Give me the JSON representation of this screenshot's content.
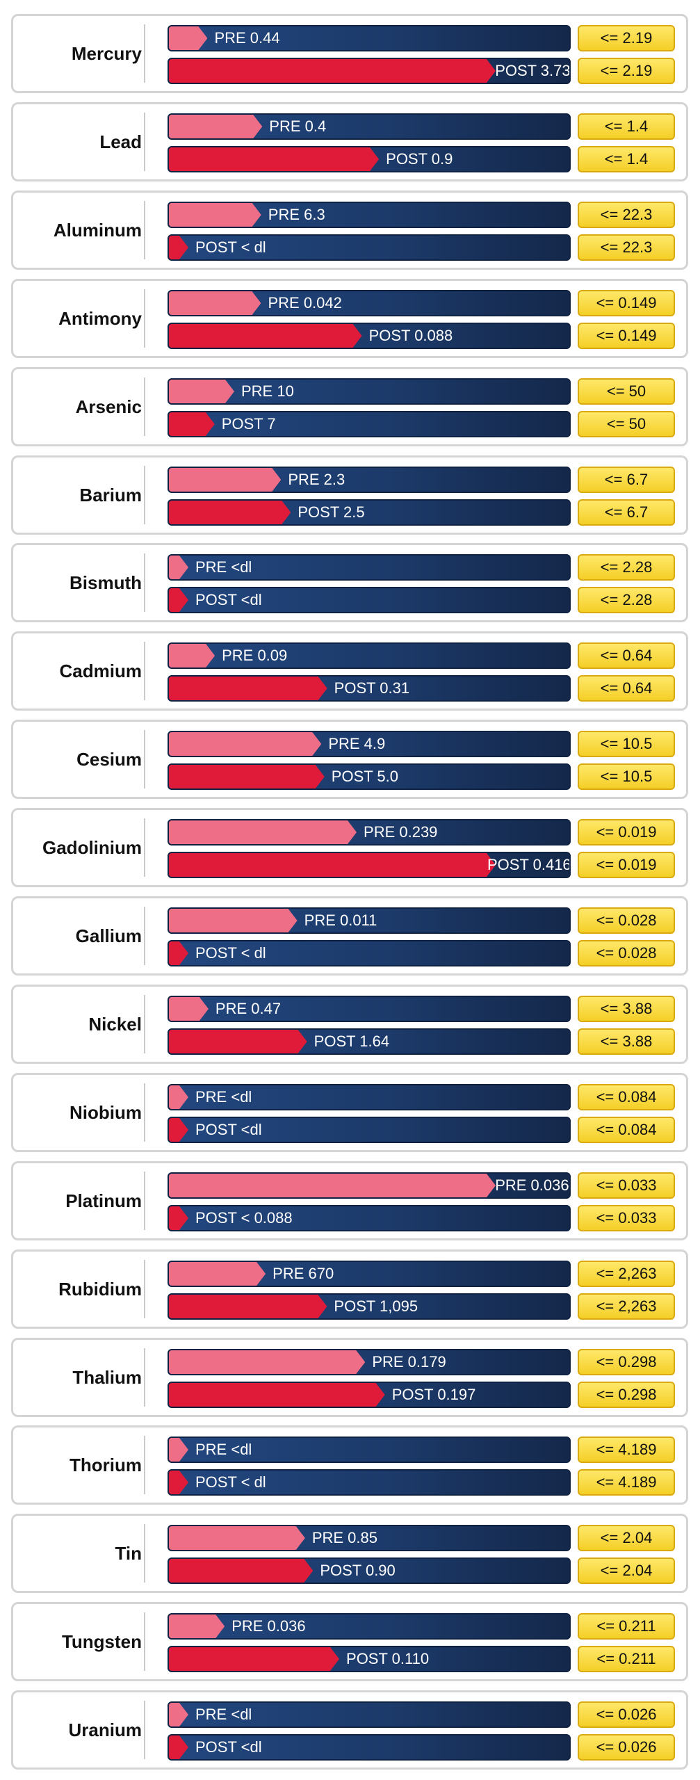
{
  "chart_data": {
    "type": "bar",
    "rows": [
      {
        "name": "Mercury",
        "pre": {
          "value": 0.44,
          "label": "PRE 0.44"
        },
        "post": {
          "value": 3.73,
          "label": "POST 3.73"
        },
        "limit": {
          "value": 2.19,
          "label": "<= 2.19"
        }
      },
      {
        "name": "Lead",
        "pre": {
          "value": 0.4,
          "label": "PRE  0.4"
        },
        "post": {
          "value": 0.9,
          "label": "POST 0.9"
        },
        "limit": {
          "value": 1.4,
          "label": "<= 1.4"
        }
      },
      {
        "name": "Aluminum",
        "pre": {
          "value": 6.3,
          "label": "PRE 6.3"
        },
        "post": {
          "value": 0,
          "label": "POST < dl"
        },
        "limit": {
          "value": 22.3,
          "label": "<= 22.3"
        }
      },
      {
        "name": "Antimony",
        "pre": {
          "value": 0.042,
          "label": "PRE 0.042"
        },
        "post": {
          "value": 0.088,
          "label": "POST 0.088"
        },
        "limit": {
          "value": 0.149,
          "label": "<= 0.149"
        }
      },
      {
        "name": "Arsenic",
        "pre": {
          "value": 10,
          "label": "PRE 10"
        },
        "post": {
          "value": 7,
          "label": "POST 7"
        },
        "limit": {
          "value": 50,
          "label": "<= 50"
        }
      },
      {
        "name": "Barium",
        "pre": {
          "value": 2.3,
          "label": "PRE 2.3"
        },
        "post": {
          "value": 2.5,
          "label": "POST 2.5"
        },
        "limit": {
          "value": 6.7,
          "label": "<= 6.7"
        }
      },
      {
        "name": "Bismuth",
        "pre": {
          "value": 0,
          "label": "PRE <dl"
        },
        "post": {
          "value": 0,
          "label": "POST <dl"
        },
        "limit": {
          "value": 2.28,
          "label": "<= 2.28"
        }
      },
      {
        "name": "Cadmium",
        "pre": {
          "value": 0.09,
          "label": "PRE 0.09"
        },
        "post": {
          "value": 0.31,
          "label": "POST 0.31"
        },
        "limit": {
          "value": 0.64,
          "label": "<= 0.64"
        }
      },
      {
        "name": "Cesium",
        "pre": {
          "value": 4.9,
          "label": "PRE 4.9"
        },
        "post": {
          "value": 5.0,
          "label": "POST 5.0"
        },
        "limit": {
          "value": 10.5,
          "label": "<= 10.5"
        }
      },
      {
        "name": "Gadolinium",
        "pre": {
          "value": 0.239,
          "label": "PRE 0.239"
        },
        "post": {
          "value": 0.416,
          "label": "POST 0.416"
        },
        "limit": {
          "value": 0.019,
          "label": "<= 0.019"
        }
      },
      {
        "name": "Gallium",
        "pre": {
          "value": 0.011,
          "label": "PRE 0.011"
        },
        "post": {
          "value": 0,
          "label": "POST < dl"
        },
        "limit": {
          "value": 0.028,
          "label": "<= 0.028"
        }
      },
      {
        "name": "Nickel",
        "pre": {
          "value": 0.47,
          "label": "PRE 0.47"
        },
        "post": {
          "value": 1.64,
          "label": "POST 1.64"
        },
        "limit": {
          "value": 3.88,
          "label": "<= 3.88"
        }
      },
      {
        "name": "Niobium",
        "pre": {
          "value": 0,
          "label": "PRE <dl"
        },
        "post": {
          "value": 0,
          "label": "POST <dl"
        },
        "limit": {
          "value": 0.084,
          "label": "<= 0.084"
        }
      },
      {
        "name": "Platinum",
        "pre": {
          "value": 0.036,
          "label": "PRE 0.036"
        },
        "post": {
          "value": 0,
          "label": "POST < 0.088"
        },
        "limit": {
          "value": 0.033,
          "label": "<= 0.033"
        }
      },
      {
        "name": "Rubidium",
        "pre": {
          "value": 670,
          "label": "PRE 670"
        },
        "post": {
          "value": 1095,
          "label": "POST 1,095"
        },
        "limit": {
          "value": 2263,
          "label": "<= 2,263"
        }
      },
      {
        "name": "Thalium",
        "pre": {
          "value": 0.179,
          "label": "PRE 0.179"
        },
        "post": {
          "value": 0.197,
          "label": "POST 0.197"
        },
        "limit": {
          "value": 0.298,
          "label": "<= 0.298"
        }
      },
      {
        "name": "Thorium",
        "pre": {
          "value": 0,
          "label": "PRE <dl"
        },
        "post": {
          "value": 0,
          "label": "POST < dl"
        },
        "limit": {
          "value": 4.189,
          "label": "<= 4.189"
        }
      },
      {
        "name": "Tin",
        "pre": {
          "value": 0.85,
          "label": "PRE 0.85"
        },
        "post": {
          "value": 0.9,
          "label": "POST 0.90"
        },
        "limit": {
          "value": 2.04,
          "label": "<= 2.04"
        }
      },
      {
        "name": "Tungsten",
        "pre": {
          "value": 0.036,
          "label": "PRE 0.036"
        },
        "post": {
          "value": 0.11,
          "label": "POST 0.110"
        },
        "limit": {
          "value": 0.211,
          "label": "<= 0.211"
        }
      },
      {
        "name": "Uranium",
        "pre": {
          "value": 0,
          "label": "PRE <dl"
        },
        "post": {
          "value": 0,
          "label": "POST <dl"
        },
        "limit": {
          "value": 0.026,
          "label": "<= 0.026"
        }
      }
    ]
  }
}
